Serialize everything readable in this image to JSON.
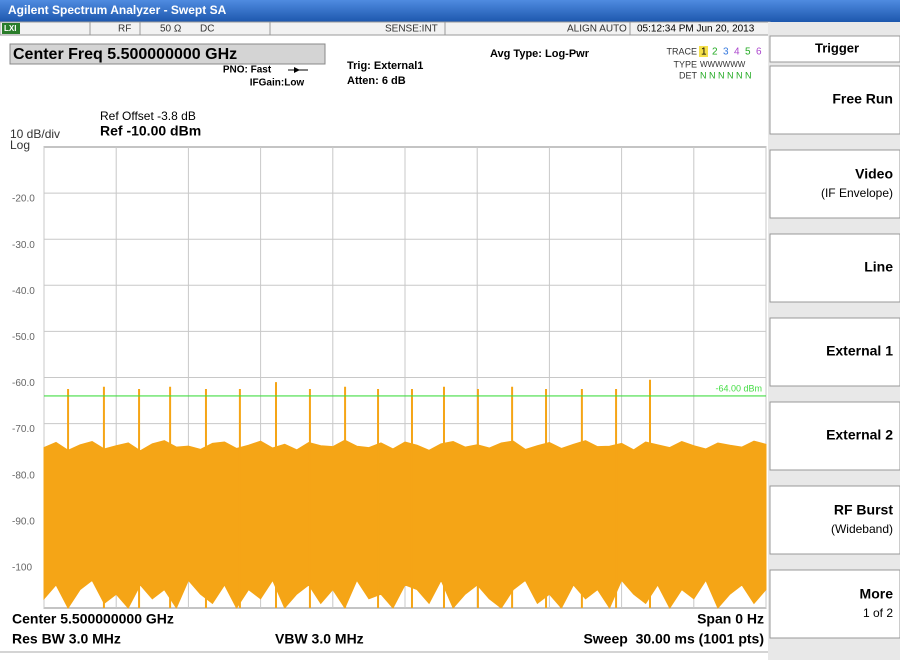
{
  "window": {
    "title": "Agilent Spectrum Analyzer - Swept SA"
  },
  "status_bar": {
    "lxi": "LXI",
    "rf": "RF",
    "impedance": "50 Ω",
    "coupling": "DC",
    "sense": "SENSE:INT",
    "align": "ALIGN AUTO",
    "timestamp": "05:12:34 PM Jun 20, 2013"
  },
  "header": {
    "center_freq": "Center Freq 5.500000000 GHz",
    "pno": "PNO: Fast",
    "ifgain": "IFGain:Low",
    "trig": "Trig: External1",
    "atten": "Atten: 6 dB",
    "avg_type": "Avg Type: Log-Pwr",
    "trace_label": "TRACE",
    "trace_numbers": [
      "1",
      "2",
      "3",
      "4",
      "5",
      "6"
    ],
    "type_label": "TYPE",
    "type_value": "WWWWWW",
    "det_label": "DET",
    "det_value": "N N N N N N",
    "ref_offset": "Ref Offset -3.8 dB",
    "scale": "10 dB/div",
    "ref_level": "Ref -10.00 dBm",
    "scale_type": "Log"
  },
  "chart_data": {
    "type": "line",
    "color": "#f5a516",
    "grid": true,
    "xlim": [
      0,
      30
    ],
    "xticks": [
      0,
      3,
      6,
      9,
      12,
      15,
      18,
      21,
      24,
      27,
      30
    ],
    "ylim": [
      -110,
      -10
    ],
    "yticks": [
      {
        "value": -20,
        "label": "-20.0"
      },
      {
        "value": -30,
        "label": "-30.0"
      },
      {
        "value": -40,
        "label": "-40.0"
      },
      {
        "value": -50,
        "label": "-50.0"
      },
      {
        "value": -60,
        "label": "-60.0"
      },
      {
        "value": -70,
        "label": "-70.0"
      },
      {
        "value": -80,
        "label": "-80.0"
      },
      {
        "value": -90,
        "label": "-90.0"
      },
      -100
    ],
    "display_line": {
      "value": -64,
      "label": "-64.00 dBm",
      "color": "#44dd44"
    },
    "noise": {
      "x": [
        0,
        0.5,
        1,
        1.5,
        2,
        2.5,
        3,
        3.5,
        4,
        4.5,
        5,
        5.5,
        6,
        6.5,
        7,
        7.5,
        8,
        8.5,
        9,
        9.5,
        10,
        10.5,
        11,
        11.5,
        12,
        12.5,
        13,
        13.5,
        14,
        14.5,
        15,
        15.5,
        16,
        16.5,
        17,
        17.5,
        18,
        18.5,
        19,
        19.5,
        20,
        20.5,
        21,
        21.5,
        22,
        22.5,
        23,
        23.5,
        24,
        24.5,
        25,
        25.5,
        26,
        26.5,
        27,
        27.5,
        28,
        28.5,
        29,
        29.5,
        30
      ],
      "top": [
        -75.2,
        -74.1,
        -75.8,
        -74.6,
        -73.9,
        -75.5,
        -74.8,
        -74.2,
        -75.9,
        -74.4,
        -73.7,
        -75.1,
        -74.9,
        -75.6,
        -74.3,
        -74.0,
        -75.4,
        -74.7,
        -73.8,
        -75.3,
        -74.5,
        -75.7,
        -74.1,
        -74.8,
        -75.0,
        -73.6,
        -74.9,
        -75.2,
        -74.2,
        -75.5,
        -74.0,
        -74.7,
        -75.8,
        -74.4,
        -73.9,
        -75.1,
        -74.6,
        -75.3,
        -74.2,
        -73.8,
        -75.6,
        -74.8,
        -74.1,
        -75.4,
        -74.5,
        -73.7,
        -75.0,
        -74.9,
        -74.3,
        -75.7,
        -74.0,
        -74.6,
        -75.2,
        -73.9,
        -74.8,
        -75.5,
        -74.2,
        -74.7,
        -75.1,
        -73.8,
        -74.5
      ],
      "bottom": [
        -108,
        -105,
        -110,
        -106,
        -104,
        -109,
        -107,
        -110,
        -105,
        -108,
        -106,
        -110,
        -104,
        -107,
        -109,
        -105,
        -110,
        -106,
        -108,
        -104,
        -110,
        -107,
        -105,
        -109,
        -106,
        -110,
        -104,
        -108,
        -107,
        -110,
        -105,
        -106,
        -109,
        -104,
        -110,
        -107,
        -105,
        -108,
        -110,
        -106,
        -104,
        -109,
        -107,
        -110,
        -105,
        -108,
        -106,
        -110,
        -104,
        -107,
        -109,
        -105,
        -110,
        -106,
        -108,
        -104,
        -110,
        -107,
        -105,
        -109,
        -106
      ]
    },
    "spikes": {
      "x": [
        1.0,
        2.49,
        3.95,
        5.24,
        6.73,
        8.14,
        9.64,
        11.05,
        12.51,
        13.88,
        15.29,
        16.62,
        18.03,
        19.45,
        20.86,
        22.35,
        23.77,
        25.18
      ],
      "values": [
        -62.5,
        -62,
        -62.5,
        -62,
        -62.5,
        -62.5,
        -61,
        -62.5,
        -62,
        -62.5,
        -62.5,
        -62,
        -62.5,
        -62,
        -62.5,
        -62.5,
        -62.5,
        -60.5
      ]
    }
  },
  "footer": {
    "center": "Center 5.500000000 GHz",
    "span": "Span 0 Hz",
    "res_bw": "Res BW 3.0 MHz",
    "vbw": "VBW 3.0 MHz",
    "sweep": "Sweep  30.00 ms (1001 pts)"
  },
  "softkeys": {
    "title": "Trigger",
    "keys": [
      {
        "label": "Free Run"
      },
      {
        "label": "Video",
        "sublabel": "(IF Envelope)"
      },
      {
        "label": "Line"
      },
      {
        "label": "External 1"
      },
      {
        "label": "External 2"
      },
      {
        "label": "RF Burst",
        "sublabel": "(Wideband)"
      },
      {
        "label": "More",
        "sublabel": "1 of 2"
      }
    ]
  }
}
